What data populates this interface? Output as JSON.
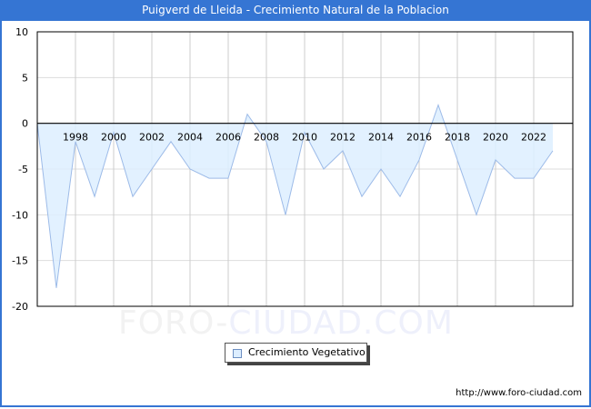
{
  "header": {
    "title": "Puigverd de Lleida - Crecimiento Natural de la Poblacion"
  },
  "legend": {
    "label": "Crecimiento Vegetativo"
  },
  "footer": {
    "url": "http://www.foro-ciudad.com"
  },
  "watermark": {
    "part1": "FORO-",
    "part2": "CIUDAD.COM"
  },
  "colors": {
    "titlebar": "#3575d3",
    "fill": "#ddeeff",
    "line": "#9dbbe8",
    "grid": "#cccccc"
  },
  "chart_data": {
    "type": "area",
    "title": "Puigverd de Lleida - Crecimiento Natural de la Poblacion",
    "xlabel": "",
    "ylabel": "",
    "ylim": [
      -20,
      10
    ],
    "yticks": [
      10,
      5,
      0,
      -5,
      -10,
      -15,
      -20
    ],
    "xtick_labels": [
      "1998",
      "2000",
      "2002",
      "2004",
      "2006",
      "2008",
      "2010",
      "2012",
      "2014",
      "2016",
      "2018",
      "2020",
      "2022"
    ],
    "grid": true,
    "legend_position": "bottom",
    "x": [
      1996,
      1997,
      1998,
      1999,
      2000,
      2001,
      2002,
      2003,
      2004,
      2005,
      2006,
      2007,
      2008,
      2009,
      2010,
      2011,
      2012,
      2013,
      2014,
      2015,
      2016,
      2017,
      2018,
      2019,
      2020,
      2021,
      2022,
      2023
    ],
    "series": [
      {
        "name": "Crecimiento Vegetativo",
        "values": [
          0,
          -18,
          -2,
          -8,
          -1,
          -8,
          -5,
          -2,
          -5,
          -6,
          -6,
          1,
          -2,
          -10,
          -1,
          -5,
          -3,
          -8,
          -5,
          -8,
          -4,
          2,
          -4,
          -10,
          -4,
          -6,
          -6,
          -3
        ]
      }
    ]
  }
}
